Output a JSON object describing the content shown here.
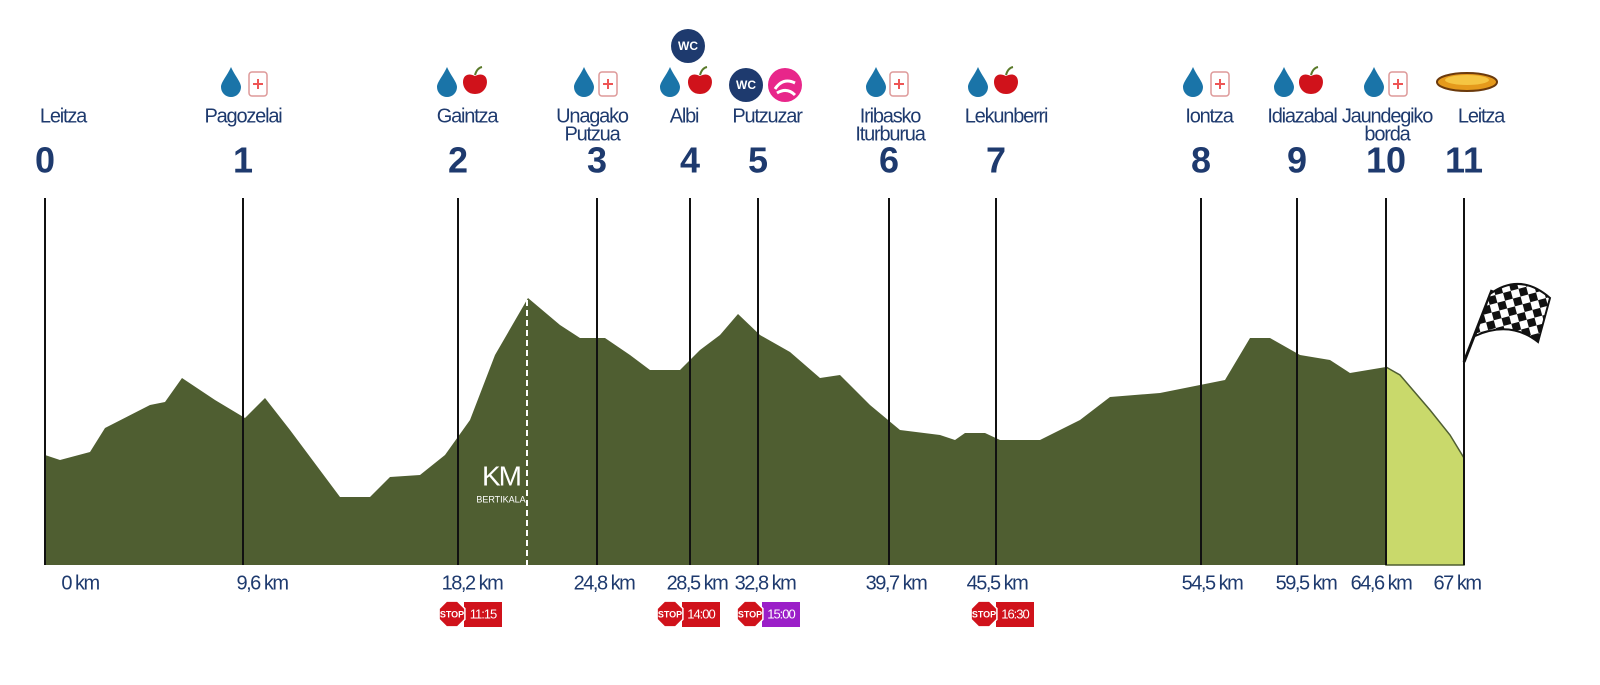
{
  "checkpoints": [
    {
      "number": 0,
      "name": [
        "Leitza"
      ],
      "distance": "0 km"
    },
    {
      "number": 1,
      "name": [
        "Pagozelai"
      ],
      "distance": "9,6 km"
    },
    {
      "number": 2,
      "name": [
        "Gaintza"
      ],
      "distance": "18,2 km",
      "stop": {
        "label": "STOP",
        "time": "11:15",
        "color": "#d0121b"
      }
    },
    {
      "number": 3,
      "name": [
        "Unagako",
        "Putzua"
      ],
      "distance": "24,8 km"
    },
    {
      "number": 4,
      "name": [
        "Albi"
      ],
      "distance": "28,5 km",
      "stop": {
        "label": "STOP",
        "time": "14:00",
        "color": "#d0121b"
      }
    },
    {
      "number": 5,
      "name": [
        "Putzuzar"
      ],
      "distance": "32,8 km",
      "stop": {
        "label": "STOP",
        "time": "15:00",
        "color": "#9b1fc8"
      }
    },
    {
      "number": 6,
      "name": [
        "Iribasko",
        "Iturburua"
      ],
      "distance": "39,7 km"
    },
    {
      "number": 7,
      "name": [
        "Lekunberri"
      ],
      "distance": "45,5 km",
      "stop": {
        "label": "STOP",
        "time": "16:30",
        "color": "#d0121b"
      }
    },
    {
      "number": 8,
      "name": [
        "Iontza"
      ],
      "distance": "54,5 km"
    },
    {
      "number": 9,
      "name": [
        "Idiazabal"
      ],
      "distance": "59,5 km"
    },
    {
      "number": 10,
      "name": [
        "Jaundegiko",
        "borda"
      ],
      "distance": "64,6 km"
    },
    {
      "number": 11,
      "name": [
        "Leitza"
      ],
      "distance": "67 km"
    }
  ],
  "wc_label": "WC",
  "vertical_km": {
    "title": "KM",
    "subtitle": "BERTIKALA"
  }
}
